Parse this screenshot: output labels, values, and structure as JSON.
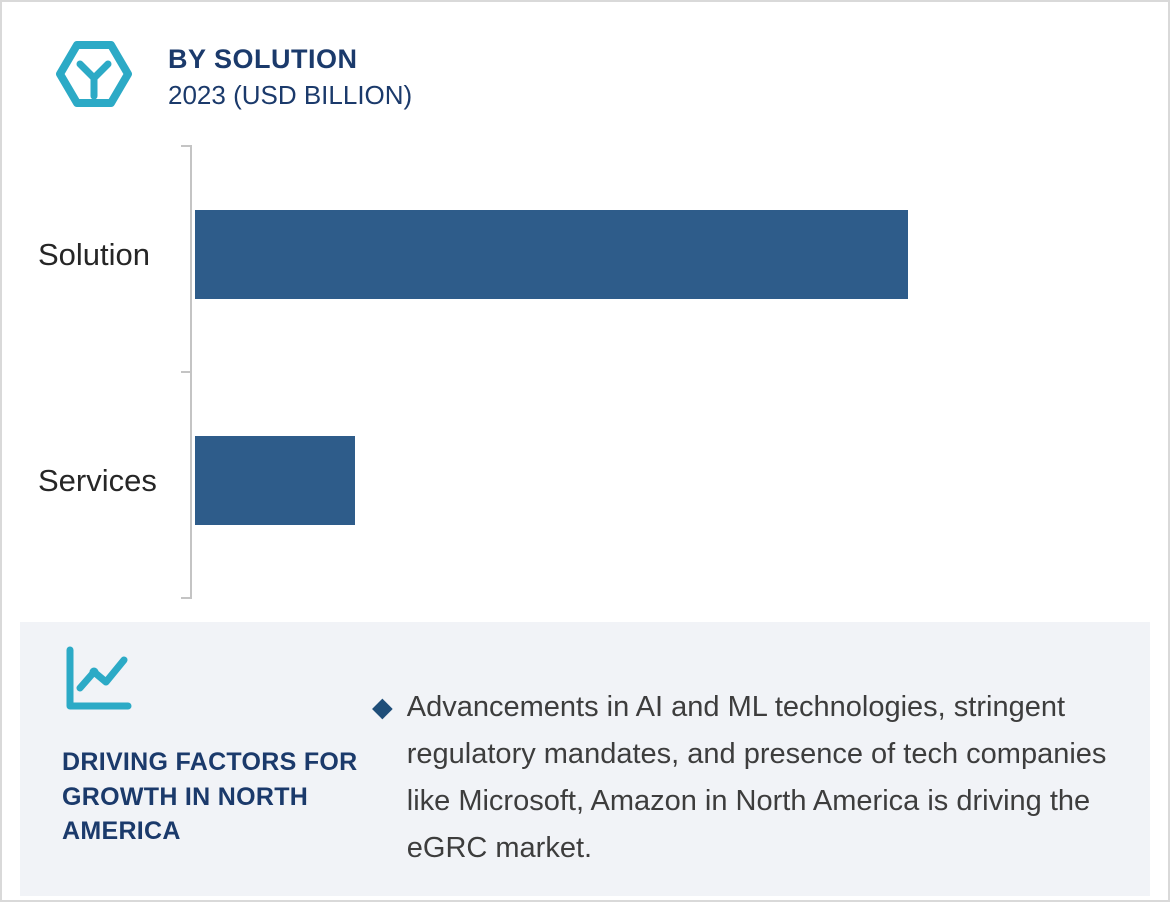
{
  "header": {
    "title": "BY SOLUTION",
    "subtitle": "2023 (USD BILLION)"
  },
  "chart_data": {
    "type": "bar",
    "orientation": "horizontal",
    "title": "BY SOLUTION",
    "subtitle": "2023 (USD BILLION)",
    "categories": [
      "Solution",
      "Services"
    ],
    "values": [
      100,
      22.5
    ],
    "value_labels_visible": false,
    "axis_tick_labels_visible": false,
    "xlabel": "",
    "ylabel": "",
    "bar_color": "#2e5c8a"
  },
  "panel": {
    "heading": "DRIVING FACTORS FOR GROWTH IN NORTH AMERICA",
    "bullet_marker": "◆",
    "bullet_text": "Advancements in AI and ML technologies, stringent regulatory mandates, and presence of tech companies like Microsoft, Amazon in North America is driving the eGRC market."
  },
  "icons": {
    "header_icon": "hexagon-y-icon",
    "panel_icon": "trend-line-chart-icon"
  },
  "colors": {
    "accent_teal": "#2caac6",
    "navy": "#1b3a6b",
    "bar_blue": "#2e5c8a",
    "bullet_navy": "#1f4e79",
    "panel_bg": "#f1f3f7",
    "text_dark": "#3d3d3d",
    "axis_gray": "#c4c4c4"
  }
}
